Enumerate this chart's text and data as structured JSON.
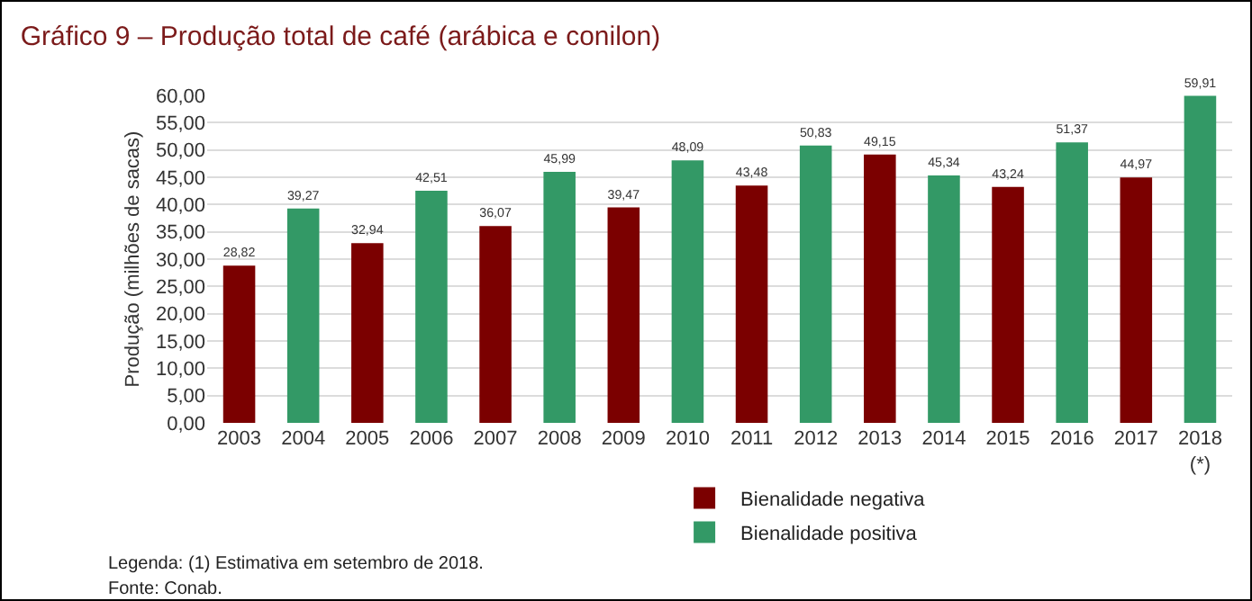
{
  "chart_data": {
    "type": "bar",
    "title": "Gráfico 9 – Produção total de café (arábica e conilon)",
    "ylabel": "Produção (milhões de sacas)",
    "categories": [
      "2003",
      "2004",
      "2005",
      "2006",
      "2007",
      "2008",
      "2009",
      "2010",
      "2011",
      "2012",
      "2013",
      "2014",
      "2015",
      "2016",
      "2017",
      "2018\n(*)"
    ],
    "series": [
      {
        "name": "Bienalidade negativa",
        "color": "#7b0000",
        "values": [
          28.82,
          null,
          32.94,
          null,
          36.07,
          null,
          39.47,
          null,
          43.48,
          null,
          49.15,
          null,
          43.24,
          null,
          44.97,
          null
        ],
        "value_labels": [
          "28,82",
          null,
          "32,94",
          null,
          "36,07",
          null,
          "39,47",
          null,
          "43,48",
          null,
          "49,15",
          null,
          "43,24",
          null,
          "44,97",
          null
        ]
      },
      {
        "name": "Bienalidade positiva",
        "color": "#339966",
        "values": [
          null,
          39.27,
          null,
          42.51,
          null,
          45.99,
          null,
          48.09,
          null,
          50.83,
          null,
          45.34,
          null,
          51.37,
          null,
          59.91
        ],
        "value_labels": [
          null,
          "39,27",
          null,
          "42,51",
          null,
          "45,99",
          null,
          "48,09",
          null,
          "50,83",
          null,
          "45,34",
          null,
          "51,37",
          null,
          "59,91"
        ]
      }
    ],
    "ylim": [
      0,
      60
    ],
    "yticks": [
      {
        "value": 0,
        "label": "0,00"
      },
      {
        "value": 5,
        "label": "5,00"
      },
      {
        "value": 10,
        "label": "10,00"
      },
      {
        "value": 15,
        "label": "15,00"
      },
      {
        "value": 20,
        "label": "20,00"
      },
      {
        "value": 25,
        "label": "25,00"
      },
      {
        "value": 30,
        "label": "30,00"
      },
      {
        "value": 35,
        "label": "35,00"
      },
      {
        "value": 40,
        "label": "40,00"
      },
      {
        "value": 45,
        "label": "45,00"
      },
      {
        "value": 50,
        "label": "50,00"
      },
      {
        "value": 55,
        "label": "55,00"
      },
      {
        "value": 60,
        "label": "60,00"
      }
    ],
    "grid": "y",
    "legend": "bottom",
    "annotations": [
      "Legenda: (1) Estimativa em setembro de 2018.",
      "Fonte: Conab."
    ]
  }
}
